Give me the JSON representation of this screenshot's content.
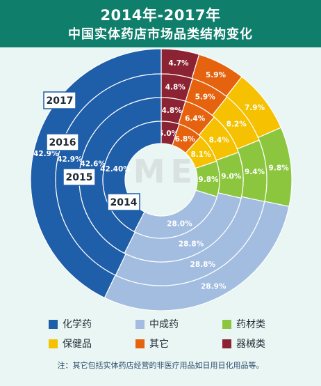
{
  "title_line1": "2014年-2017年",
  "title_line2": "中国实体药店市场品类结构变化",
  "watermark": "米内 MENET",
  "note": "注：其它包括实体药店经营的非医疗用品如日用日化用品等。",
  "colors": {
    "header": "#0f7e6b",
    "化学药": "#1f5ea8",
    "中成药": "#a3bde0",
    "药材类": "#8cc63f",
    "保健品": "#f5c100",
    "其它": "#e5630f",
    "器械类": "#8b2333"
  },
  "chart_data": {
    "type": "donut",
    "title": "2014年-2017年 中国实体药店市场品类结构变化",
    "categories": [
      "化学药",
      "中成药",
      "药材类",
      "保健品",
      "其它",
      "器械类"
    ],
    "rings": [
      {
        "year": "2017",
        "values": [
          42.9,
          28.9,
          9.8,
          7.9,
          5.9,
          4.7
        ],
        "labels": [
          "42.9%",
          "28.9%",
          "9.8%",
          "7.9%",
          "5.9%",
          "4.7%"
        ]
      },
      {
        "year": "2016",
        "values": [
          42.9,
          28.8,
          9.4,
          8.2,
          5.9,
          4.8
        ],
        "labels": [
          "42.9%",
          "28.8%",
          "9.4%",
          "8.2%",
          "5.9%",
          "4.8%"
        ]
      },
      {
        "year": "2015",
        "values": [
          42.6,
          28.8,
          9.0,
          8.4,
          6.4,
          4.8
        ],
        "labels": [
          "42.6%",
          "28.8%",
          "9.0%",
          "8.4%",
          "6.4%",
          "4.8%"
        ]
      },
      {
        "year": "2014",
        "values": [
          42.4,
          28.0,
          9.8,
          8.1,
          6.8,
          5.0
        ],
        "labels": [
          "42.40%",
          "28.0%",
          "9.8%",
          "8.1%",
          "6.8%",
          "5.0%"
        ]
      }
    ],
    "legend": [
      "化学药",
      "中成药",
      "药材类",
      "保健品",
      "其它",
      "器械类"
    ]
  }
}
